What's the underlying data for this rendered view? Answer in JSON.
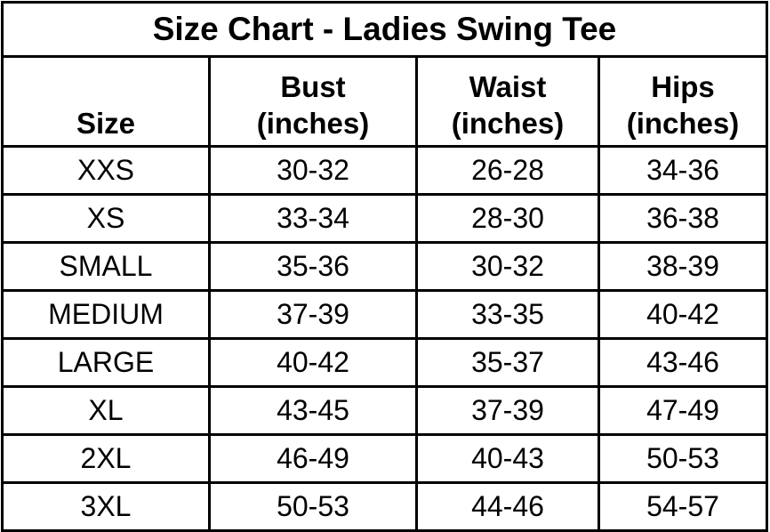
{
  "title": "Size Chart - Ladies Swing Tee",
  "headers": [
    {
      "line1": "",
      "line2": "Size"
    },
    {
      "line1": "Bust",
      "line2": "(inches)"
    },
    {
      "line1": "Waist",
      "line2": "(inches)"
    },
    {
      "line1": "Hips",
      "line2": "(inches)"
    }
  ],
  "rows": [
    [
      "XXS",
      "30-32",
      "26-28",
      "34-36"
    ],
    [
      "XS",
      "33-34",
      "28-30",
      "36-38"
    ],
    [
      "SMALL",
      "35-36",
      "30-32",
      "38-39"
    ],
    [
      "MEDIUM",
      "37-39",
      "33-35",
      "40-42"
    ],
    [
      "LARGE",
      "40-42",
      "35-37",
      "43-46"
    ],
    [
      "XL",
      "43-45",
      "37-39",
      "47-49"
    ],
    [
      "2XL",
      "46-49",
      "40-43",
      "50-53"
    ],
    [
      "3XL",
      "50-53",
      "44-46",
      "54-57"
    ]
  ]
}
